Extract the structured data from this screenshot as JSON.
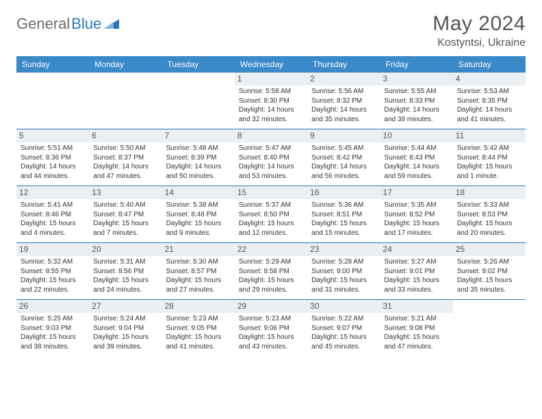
{
  "brand": {
    "part1": "General",
    "part2": "Blue"
  },
  "title": "May 2024",
  "location": "Kostyntsi, Ukraine",
  "colors": {
    "headerBar": "#3a89c9",
    "rowDivider": "#2a76b9",
    "dayNumBg": "#eceff1",
    "pageBg": "#ffffff",
    "text": "#333333"
  },
  "daysOfWeek": [
    "Sunday",
    "Monday",
    "Tuesday",
    "Wednesday",
    "Thursday",
    "Friday",
    "Saturday"
  ],
  "weeks": [
    [
      {
        "n": "",
        "empty": true
      },
      {
        "n": "",
        "empty": true
      },
      {
        "n": "",
        "empty": true
      },
      {
        "n": "1",
        "sunrise": "Sunrise: 5:58 AM",
        "sunset": "Sunset: 8:30 PM",
        "dayl1": "Daylight: 14 hours",
        "dayl2": "and 32 minutes."
      },
      {
        "n": "2",
        "sunrise": "Sunrise: 5:56 AM",
        "sunset": "Sunset: 8:32 PM",
        "dayl1": "Daylight: 14 hours",
        "dayl2": "and 35 minutes."
      },
      {
        "n": "3",
        "sunrise": "Sunrise: 5:55 AM",
        "sunset": "Sunset: 8:33 PM",
        "dayl1": "Daylight: 14 hours",
        "dayl2": "and 38 minutes."
      },
      {
        "n": "4",
        "sunrise": "Sunrise: 5:53 AM",
        "sunset": "Sunset: 8:35 PM",
        "dayl1": "Daylight: 14 hours",
        "dayl2": "and 41 minutes."
      }
    ],
    [
      {
        "n": "5",
        "sunrise": "Sunrise: 5:51 AM",
        "sunset": "Sunset: 8:36 PM",
        "dayl1": "Daylight: 14 hours",
        "dayl2": "and 44 minutes."
      },
      {
        "n": "6",
        "sunrise": "Sunrise: 5:50 AM",
        "sunset": "Sunset: 8:37 PM",
        "dayl1": "Daylight: 14 hours",
        "dayl2": "and 47 minutes."
      },
      {
        "n": "7",
        "sunrise": "Sunrise: 5:48 AM",
        "sunset": "Sunset: 8:39 PM",
        "dayl1": "Daylight: 14 hours",
        "dayl2": "and 50 minutes."
      },
      {
        "n": "8",
        "sunrise": "Sunrise: 5:47 AM",
        "sunset": "Sunset: 8:40 PM",
        "dayl1": "Daylight: 14 hours",
        "dayl2": "and 53 minutes."
      },
      {
        "n": "9",
        "sunrise": "Sunrise: 5:45 AM",
        "sunset": "Sunset: 8:42 PM",
        "dayl1": "Daylight: 14 hours",
        "dayl2": "and 56 minutes."
      },
      {
        "n": "10",
        "sunrise": "Sunrise: 5:44 AM",
        "sunset": "Sunset: 8:43 PM",
        "dayl1": "Daylight: 14 hours",
        "dayl2": "and 59 minutes."
      },
      {
        "n": "11",
        "sunrise": "Sunrise: 5:42 AM",
        "sunset": "Sunset: 8:44 PM",
        "dayl1": "Daylight: 15 hours",
        "dayl2": "and 1 minute."
      }
    ],
    [
      {
        "n": "12",
        "sunrise": "Sunrise: 5:41 AM",
        "sunset": "Sunset: 8:46 PM",
        "dayl1": "Daylight: 15 hours",
        "dayl2": "and 4 minutes."
      },
      {
        "n": "13",
        "sunrise": "Sunrise: 5:40 AM",
        "sunset": "Sunset: 8:47 PM",
        "dayl1": "Daylight: 15 hours",
        "dayl2": "and 7 minutes."
      },
      {
        "n": "14",
        "sunrise": "Sunrise: 5:38 AM",
        "sunset": "Sunset: 8:48 PM",
        "dayl1": "Daylight: 15 hours",
        "dayl2": "and 9 minutes."
      },
      {
        "n": "15",
        "sunrise": "Sunrise: 5:37 AM",
        "sunset": "Sunset: 8:50 PM",
        "dayl1": "Daylight: 15 hours",
        "dayl2": "and 12 minutes."
      },
      {
        "n": "16",
        "sunrise": "Sunrise: 5:36 AM",
        "sunset": "Sunset: 8:51 PM",
        "dayl1": "Daylight: 15 hours",
        "dayl2": "and 15 minutes."
      },
      {
        "n": "17",
        "sunrise": "Sunrise: 5:35 AM",
        "sunset": "Sunset: 8:52 PM",
        "dayl1": "Daylight: 15 hours",
        "dayl2": "and 17 minutes."
      },
      {
        "n": "18",
        "sunrise": "Sunrise: 5:33 AM",
        "sunset": "Sunset: 8:53 PM",
        "dayl1": "Daylight: 15 hours",
        "dayl2": "and 20 minutes."
      }
    ],
    [
      {
        "n": "19",
        "sunrise": "Sunrise: 5:32 AM",
        "sunset": "Sunset: 8:55 PM",
        "dayl1": "Daylight: 15 hours",
        "dayl2": "and 22 minutes."
      },
      {
        "n": "20",
        "sunrise": "Sunrise: 5:31 AM",
        "sunset": "Sunset: 8:56 PM",
        "dayl1": "Daylight: 15 hours",
        "dayl2": "and 24 minutes."
      },
      {
        "n": "21",
        "sunrise": "Sunrise: 5:30 AM",
        "sunset": "Sunset: 8:57 PM",
        "dayl1": "Daylight: 15 hours",
        "dayl2": "and 27 minutes."
      },
      {
        "n": "22",
        "sunrise": "Sunrise: 5:29 AM",
        "sunset": "Sunset: 8:58 PM",
        "dayl1": "Daylight: 15 hours",
        "dayl2": "and 29 minutes."
      },
      {
        "n": "23",
        "sunrise": "Sunrise: 5:28 AM",
        "sunset": "Sunset: 9:00 PM",
        "dayl1": "Daylight: 15 hours",
        "dayl2": "and 31 minutes."
      },
      {
        "n": "24",
        "sunrise": "Sunrise: 5:27 AM",
        "sunset": "Sunset: 9:01 PM",
        "dayl1": "Daylight: 15 hours",
        "dayl2": "and 33 minutes."
      },
      {
        "n": "25",
        "sunrise": "Sunrise: 5:26 AM",
        "sunset": "Sunset: 9:02 PM",
        "dayl1": "Daylight: 15 hours",
        "dayl2": "and 35 minutes."
      }
    ],
    [
      {
        "n": "26",
        "sunrise": "Sunrise: 5:25 AM",
        "sunset": "Sunset: 9:03 PM",
        "dayl1": "Daylight: 15 hours",
        "dayl2": "and 38 minutes."
      },
      {
        "n": "27",
        "sunrise": "Sunrise: 5:24 AM",
        "sunset": "Sunset: 9:04 PM",
        "dayl1": "Daylight: 15 hours",
        "dayl2": "and 39 minutes."
      },
      {
        "n": "28",
        "sunrise": "Sunrise: 5:23 AM",
        "sunset": "Sunset: 9:05 PM",
        "dayl1": "Daylight: 15 hours",
        "dayl2": "and 41 minutes."
      },
      {
        "n": "29",
        "sunrise": "Sunrise: 5:23 AM",
        "sunset": "Sunset: 9:06 PM",
        "dayl1": "Daylight: 15 hours",
        "dayl2": "and 43 minutes."
      },
      {
        "n": "30",
        "sunrise": "Sunrise: 5:22 AM",
        "sunset": "Sunset: 9:07 PM",
        "dayl1": "Daylight: 15 hours",
        "dayl2": "and 45 minutes."
      },
      {
        "n": "31",
        "sunrise": "Sunrise: 5:21 AM",
        "sunset": "Sunset: 9:08 PM",
        "dayl1": "Daylight: 15 hours",
        "dayl2": "and 47 minutes."
      },
      {
        "n": "",
        "empty": true
      }
    ]
  ]
}
